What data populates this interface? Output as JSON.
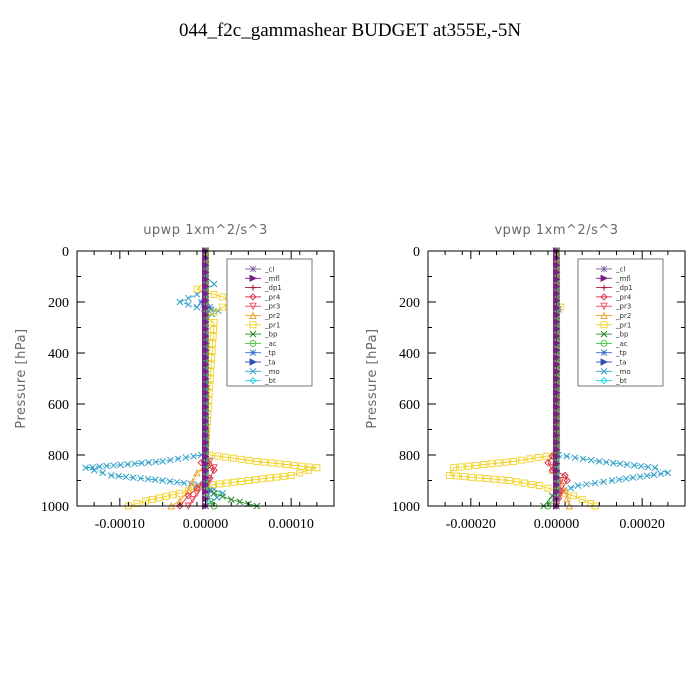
{
  "page": {
    "title": "044_f2c_gammashear  BUDGET at355E,-5N"
  },
  "legend_entries": [
    {
      "name": "_cl",
      "color": "#7a5fa0",
      "marker": "star"
    },
    {
      "name": "_mfl",
      "color": "#7a1f8a",
      "marker": "triangle-right"
    },
    {
      "name": "_dp1",
      "color": "#b0103a",
      "marker": "plus"
    },
    {
      "name": "_pr4",
      "color": "#d8283c",
      "marker": "diamond"
    },
    {
      "name": "_pr3",
      "color": "#e84a60",
      "marker": "triangle-down"
    },
    {
      "name": "_pr2",
      "color": "#f0a030",
      "marker": "triangle-up"
    },
    {
      "name": "_pr1",
      "color": "#f0d020",
      "marker": "square"
    },
    {
      "name": "_bp",
      "color": "#2a8a2a",
      "marker": "x"
    },
    {
      "name": "_ac",
      "color": "#40c040",
      "marker": "circle"
    },
    {
      "name": "_tp",
      "color": "#3a70c8",
      "marker": "star"
    },
    {
      "name": "_ta",
      "color": "#3050b0",
      "marker": "triangle-right"
    },
    {
      "name": "_mo",
      "color": "#30a0c8",
      "marker": "x"
    },
    {
      "name": "_bt",
      "color": "#20d0e0",
      "marker": "diamond"
    }
  ],
  "chart_data": [
    {
      "type": "line",
      "title": "upwp   1xm^2/s^3",
      "ylabel": "Pressure  [hPa]",
      "xlim": [
        -0.00015,
        0.00015
      ],
      "ylim": [
        1000,
        0
      ],
      "xticks": [
        -0.0001,
        0,
        0.0001
      ],
      "xtick_labels": [
        "-0.00010",
        "0.00000",
        "0.00010"
      ],
      "yticks": [
        0,
        200,
        400,
        600,
        800,
        1000
      ],
      "ytick_labels": [
        "0",
        "200",
        "400",
        "600",
        "800",
        "1000"
      ],
      "legend_position": "top-right",
      "series": [
        {
          "name": "_mo",
          "color": "#30a0c8",
          "points": [
            [
              0,
              0
            ],
            [
              0,
              100
            ],
            [
              1e-05,
              130
            ],
            [
              -1e-05,
              170
            ],
            [
              -3e-05,
              200
            ],
            [
              -1e-05,
              220
            ],
            [
              1.5e-05,
              235
            ],
            [
              0,
              260
            ],
            [
              0,
              780
            ],
            [
              -5e-06,
              800
            ],
            [
              -5e-05,
              825
            ],
            [
              -0.00014,
              850
            ],
            [
              -0.00011,
              880
            ],
            [
              -5e-05,
              900
            ],
            [
              0,
              920
            ],
            [
              2e-05,
              950
            ],
            [
              0,
              1000
            ]
          ]
        },
        {
          "name": "_pr1",
          "color": "#f0d020",
          "points": [
            [
              0,
              0
            ],
            [
              0,
              120
            ],
            [
              -1e-05,
              150
            ],
            [
              2e-05,
              180
            ],
            [
              3e-05,
              200
            ],
            [
              1e-05,
              240
            ],
            [
              0,
              260
            ],
            [
              1e-05,
              280
            ],
            [
              0,
              780
            ],
            [
              5e-06,
              800
            ],
            [
              6e-05,
              825
            ],
            [
              0.00013,
              850
            ],
            [
              0.0001,
              880
            ],
            [
              5e-05,
              900
            ],
            [
              0,
              920
            ],
            [
              -3e-05,
              950
            ],
            [
              -7e-05,
              980
            ],
            [
              -9e-05,
              1000
            ]
          ]
        },
        {
          "name": "_pr2",
          "color": "#f0a030",
          "points": [
            [
              0,
              0
            ],
            [
              0,
              780
            ],
            [
              5e-06,
              830
            ],
            [
              -1e-05,
              870
            ],
            [
              -2e-05,
              940
            ],
            [
              -3e-05,
              980
            ],
            [
              -4e-05,
              1000
            ]
          ]
        },
        {
          "name": "_pr4",
          "color": "#d8283c",
          "points": [
            [
              0,
              0
            ],
            [
              0,
              780
            ],
            [
              -5e-06,
              830
            ],
            [
              1e-05,
              860
            ],
            [
              5e-06,
              890
            ],
            [
              -1e-05,
              930
            ],
            [
              -2e-05,
              960
            ],
            [
              -3e-05,
              1000
            ]
          ]
        },
        {
          "name": "_pr3",
          "color": "#e84a60",
          "points": [
            [
              0,
              0
            ],
            [
              0,
              800
            ],
            [
              1e-05,
              850
            ],
            [
              5e-06,
              900
            ],
            [
              -1e-05,
              950
            ],
            [
              -2e-05,
              1000
            ]
          ]
        },
        {
          "name": "_tp",
          "color": "#3a70c8",
          "points": [
            [
              0,
              0
            ],
            [
              0,
              180
            ],
            [
              -5e-06,
              200
            ],
            [
              5e-06,
              220
            ],
            [
              0,
              240
            ],
            [
              0,
              900
            ],
            [
              5e-06,
              940
            ],
            [
              0,
              1000
            ]
          ]
        },
        {
          "name": "_bp",
          "color": "#2a8a2a",
          "points": [
            [
              0,
              0
            ],
            [
              0,
              920
            ],
            [
              1e-05,
              950
            ],
            [
              3e-05,
              975
            ],
            [
              6e-05,
              1000
            ]
          ]
        },
        {
          "name": "_ac",
          "color": "#40c040",
          "points": [
            [
              0,
              0
            ],
            [
              0,
              950
            ],
            [
              5e-06,
              980
            ],
            [
              1e-05,
              1000
            ]
          ]
        },
        {
          "name": "_dp1",
          "color": "#b0103a",
          "points": [
            [
              0,
              0
            ],
            [
              0,
              1000
            ]
          ]
        },
        {
          "name": "_cl",
          "color": "#7a5fa0",
          "points": [
            [
              0,
              0
            ],
            [
              0,
              1000
            ]
          ]
        },
        {
          "name": "_mfl",
          "color": "#7a1f8a",
          "points": [
            [
              0,
              0
            ],
            [
              0,
              1000
            ]
          ]
        }
      ]
    },
    {
      "type": "line",
      "title": "vpwp   1xm^2/s^3",
      "ylabel": "Pressure  [hPa]",
      "xlim": [
        -0.0003,
        0.0003
      ],
      "ylim": [
        1000,
        0
      ],
      "xticks": [
        -0.0002,
        0,
        0.0002
      ],
      "xtick_labels": [
        "-0.00020",
        "0.00000",
        "0.00020"
      ],
      "yticks": [
        0,
        200,
        400,
        600,
        800,
        1000
      ],
      "ytick_labels": [
        "0",
        "200",
        "400",
        "600",
        "800",
        "1000"
      ],
      "legend_position": "top-right",
      "series": [
        {
          "name": "_mo",
          "color": "#30a0c8",
          "points": [
            [
              0,
              0
            ],
            [
              0,
              780
            ],
            [
              5e-06,
              800
            ],
            [
              0.0001,
              825
            ],
            [
              0.00023,
              850
            ],
            [
              0.00026,
              870
            ],
            [
              0.00013,
              900
            ],
            [
              5e-05,
              920
            ],
            [
              0,
              950
            ],
            [
              0,
              1000
            ]
          ]
        },
        {
          "name": "_pr1",
          "color": "#f0d020",
          "points": [
            [
              0,
              0
            ],
            [
              0,
              200
            ],
            [
              1e-05,
              220
            ],
            [
              0,
              240
            ],
            [
              0,
              780
            ],
            [
              -5e-06,
              800
            ],
            [
              -0.0001,
              825
            ],
            [
              -0.00024,
              850
            ],
            [
              -0.00025,
              880
            ],
            [
              -0.00011,
              900
            ],
            [
              -4e-05,
              920
            ],
            [
              0,
              940
            ],
            [
              4e-05,
              960
            ],
            [
              8e-05,
              990
            ],
            [
              9e-05,
              1000
            ]
          ]
        },
        {
          "name": "_pr2",
          "color": "#f0a030",
          "points": [
            [
              0,
              0
            ],
            [
              0,
              800
            ],
            [
              -1e-05,
              860
            ],
            [
              1e-05,
              900
            ],
            [
              2e-05,
              940
            ],
            [
              3e-05,
              1000
            ]
          ]
        },
        {
          "name": "_pr4",
          "color": "#d8283c",
          "points": [
            [
              0,
              0
            ],
            [
              0,
              780
            ],
            [
              -2e-05,
              830
            ],
            [
              -1e-05,
              860
            ],
            [
              2e-05,
              880
            ],
            [
              2.5e-05,
              900
            ],
            [
              1e-05,
              940
            ],
            [
              0,
              1000
            ]
          ]
        },
        {
          "name": "_pr3",
          "color": "#e84a60",
          "points": [
            [
              0,
              0
            ],
            [
              0,
              800
            ],
            [
              -1e-05,
              850
            ],
            [
              1e-05,
              900
            ],
            [
              1e-05,
              950
            ],
            [
              0,
              1000
            ]
          ]
        },
        {
          "name": "_tp",
          "color": "#3a70c8",
          "points": [
            [
              0,
              0
            ],
            [
              0,
              200
            ],
            [
              5e-06,
              230
            ],
            [
              0,
              250
            ],
            [
              0,
              1000
            ]
          ]
        },
        {
          "name": "_bp",
          "color": "#2a8a2a",
          "points": [
            [
              0,
              0
            ],
            [
              0,
              930
            ],
            [
              -1e-05,
              960
            ],
            [
              -3e-05,
              1000
            ]
          ]
        },
        {
          "name": "_ac",
          "color": "#40c040",
          "points": [
            [
              0,
              0
            ],
            [
              0,
              950
            ],
            [
              -1e-05,
              980
            ],
            [
              -2e-05,
              1000
            ]
          ]
        },
        {
          "name": "_dp1",
          "color": "#b0103a",
          "points": [
            [
              0,
              0
            ],
            [
              0,
              1000
            ]
          ]
        },
        {
          "name": "_cl",
          "color": "#7a5fa0",
          "points": [
            [
              0,
              0
            ],
            [
              0,
              1000
            ]
          ]
        },
        {
          "name": "_mfl",
          "color": "#7a1f8a",
          "points": [
            [
              0,
              0
            ],
            [
              0,
              1000
            ]
          ]
        }
      ]
    }
  ]
}
